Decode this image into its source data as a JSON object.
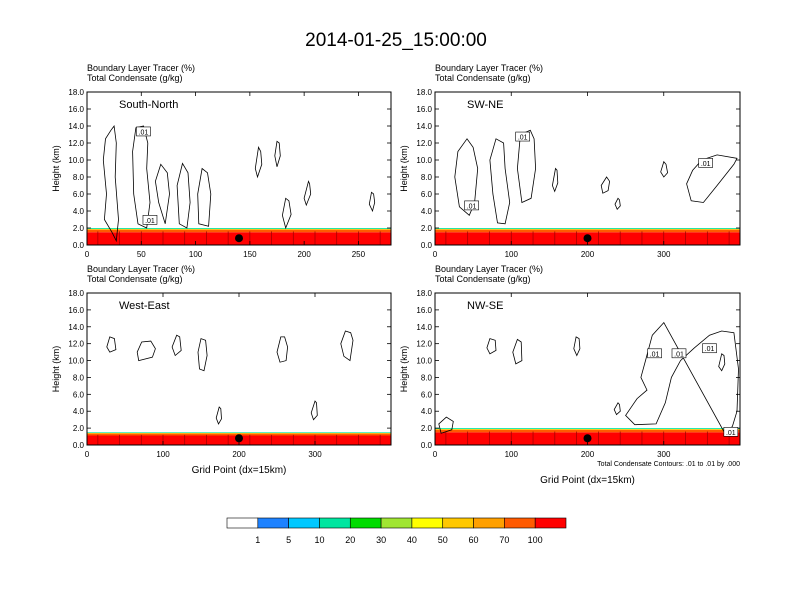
{
  "title": "2014-01-25_15:00:00",
  "colors": {
    "scale": [
      "#ffffff",
      "#1e82ff",
      "#00c8ff",
      "#00e6a0",
      "#00dc00",
      "#a0e632",
      "#ffff00",
      "#ffc800",
      "#ffa000",
      "#ff5a00",
      "#ff0000"
    ],
    "contour": "#000000"
  },
  "chart_data": [
    {
      "type": "contour",
      "panel_label": "South-North",
      "var_labels": [
        "Boundary Layer Tracer   (%)",
        "Total Condensate   (g/kg)"
      ],
      "ylabel": "Height (km)",
      "xlabel": "",
      "ylim": [
        0,
        18
      ],
      "yticks": [
        "0.0",
        "2.0",
        "4.0",
        "6.0",
        "8.0",
        "10.0",
        "12.0",
        "14.0",
        "16.0",
        "18.0"
      ],
      "xlim": [
        0,
        280
      ],
      "xticks": [
        0,
        50,
        100,
        150,
        200,
        250
      ],
      "marker_x": 140,
      "contour_labels": [
        {
          "text": ".01",
          "x": 52,
          "y": 13.3
        },
        {
          "text": ".01",
          "x": 58,
          "y": 2.9
        }
      ],
      "tracer_band_km": [
        0,
        2.0
      ]
    },
    {
      "type": "contour",
      "panel_label": "SW-NE",
      "var_labels": [
        "Boundary Layer Tracer   (%)",
        "Total Condensate   (g/kg)"
      ],
      "ylabel": "Height (km)",
      "xlabel": "",
      "ylim": [
        0,
        18
      ],
      "yticks": [
        "0.0",
        "2.0",
        "4.0",
        "6.0",
        "8.0",
        "10.0",
        "12.0",
        "14.0",
        "16.0",
        "18.0"
      ],
      "xlim": [
        0,
        400
      ],
      "xticks": [
        0,
        100,
        200,
        300
      ],
      "marker_x": 200,
      "contour_labels": [
        {
          "text": ".01",
          "x": 115,
          "y": 12.7
        },
        {
          "text": ".01",
          "x": 48,
          "y": 4.6
        },
        {
          "text": ".01",
          "x": 355,
          "y": 9.6
        }
      ],
      "tracer_band_km": [
        0,
        2.0
      ]
    },
    {
      "type": "contour",
      "panel_label": "West-East",
      "var_labels": [
        "Boundary Layer Tracer   (%)",
        "Total Condensate   (g/kg)"
      ],
      "ylabel": "Height (km)",
      "xlabel": "Grid Point (dx=15km)",
      "ylim": [
        0,
        18
      ],
      "yticks": [
        "0.0",
        "2.0",
        "4.0",
        "6.0",
        "8.0",
        "10.0",
        "12.0",
        "14.0",
        "16.0",
        "18.0"
      ],
      "xlim": [
        0,
        400
      ],
      "xticks": [
        0,
        100,
        200,
        300
      ],
      "marker_x": 200,
      "contour_labels": [],
      "tracer_band_km": [
        0,
        1.5
      ]
    },
    {
      "type": "contour",
      "panel_label": "NW-SE",
      "var_labels": [
        "Boundary Layer Tracer   (%)",
        "Total Condensate   (g/kg)"
      ],
      "ylabel": "Height (km)",
      "xlabel": "Grid Point (dx=15km)",
      "ylim": [
        0,
        18
      ],
      "yticks": [
        "0.0",
        "2.0",
        "4.0",
        "6.0",
        "8.0",
        "10.0",
        "12.0",
        "14.0",
        "16.0",
        "18.0"
      ],
      "xlim": [
        0,
        400
      ],
      "xticks": [
        0,
        100,
        200,
        300
      ],
      "marker_x": 200,
      "contour_labels": [
        {
          "text": ".01",
          "x": 288,
          "y": 10.8
        },
        {
          "text": ".01",
          "x": 320,
          "y": 10.8
        },
        {
          "text": ".01",
          "x": 360,
          "y": 11.4
        },
        {
          "text": ".01",
          "x": 388,
          "y": 1.5
        }
      ],
      "tracer_band_km": [
        0,
        2.0
      ],
      "footnote": "Total Condensate Contours: .01 to .01 by .000"
    }
  ],
  "colorbar": {
    "levels": [
      "1",
      "5",
      "10",
      "20",
      "30",
      "40",
      "50",
      "60",
      "70",
      "100"
    ]
  }
}
